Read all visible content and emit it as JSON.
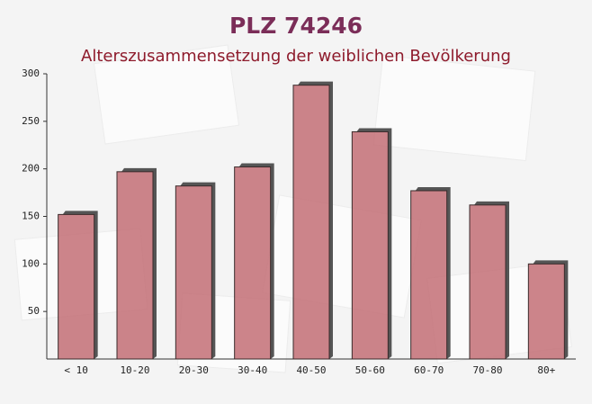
{
  "chart_data": {
    "type": "bar",
    "title": "PLZ 74246",
    "subtitle": "Alterszusammensetzung der weiblichen Bevölkerung",
    "categories": [
      "< 10",
      "10-20",
      "20-30",
      "30-40",
      "40-50",
      "50-60",
      "60-70",
      "70-80",
      "80+"
    ],
    "values": [
      152,
      197,
      182,
      202,
      288,
      239,
      177,
      162,
      100
    ],
    "color": "#c0666e",
    "ylim": [
      0,
      300
    ],
    "yticks": [
      50,
      100,
      150,
      200,
      250,
      300
    ],
    "grid": false
  }
}
